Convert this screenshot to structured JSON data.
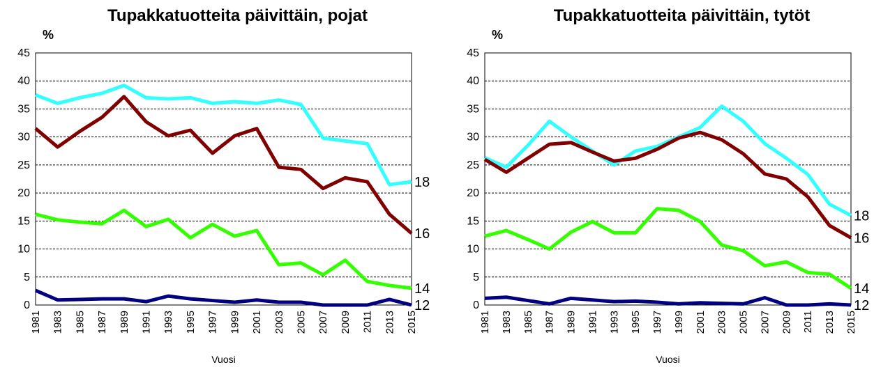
{
  "chart_data": [
    {
      "type": "line",
      "title": "Tupakkatuotteita päivittäin, pojat",
      "y_label": "%",
      "x_label": "Vuosi",
      "categories": [
        "1981",
        "1983",
        "1985",
        "1987",
        "1989",
        "1991",
        "1993",
        "1995",
        "1997",
        "1999",
        "2001",
        "2003",
        "2005",
        "2007",
        "2009",
        "2011",
        "2013",
        "2015"
      ],
      "ylim": [
        0,
        45
      ],
      "yticks": [
        0,
        5,
        10,
        15,
        20,
        25,
        30,
        35,
        40,
        45
      ],
      "grid": true,
      "series": [
        {
          "name": "18",
          "color": "#33ffff",
          "values": [
            37.5,
            36,
            37,
            37.8,
            39.2,
            37,
            36.8,
            37,
            36,
            36.3,
            36,
            36.6,
            35.8,
            29.8,
            29.3,
            28.8,
            21.5,
            22
          ]
        },
        {
          "name": "16",
          "color": "#800000",
          "values": [
            31.5,
            28.2,
            31,
            33.5,
            37.2,
            32.7,
            30.2,
            31.2,
            27.1,
            30.2,
            31.5,
            24.6,
            24.2,
            20.8,
            22.7,
            22,
            16.2,
            12.8
          ]
        },
        {
          "name": "14",
          "color": "#33ff00",
          "values": [
            16.2,
            15.2,
            14.8,
            14.5,
            16.9,
            14,
            15.3,
            12,
            14.4,
            12.3,
            13.3,
            7.2,
            7.5,
            5.4,
            8,
            4.2,
            3.5,
            3
          ]
        },
        {
          "name": "12",
          "color": "#000080",
          "values": [
            2.6,
            0.9,
            1,
            1.1,
            1.1,
            0.6,
            1.6,
            1.1,
            0.8,
            0.5,
            0.9,
            0.5,
            0.5,
            0,
            0,
            0,
            1,
            0
          ]
        }
      ]
    },
    {
      "type": "line",
      "title": "Tupakkatuotteita päivittäin, tytöt",
      "y_label": "%",
      "x_label": "Vuosi",
      "categories": [
        "1981",
        "1983",
        "1985",
        "1987",
        "1989",
        "1991",
        "1993",
        "1995",
        "1997",
        "1999",
        "2001",
        "2003",
        "2005",
        "2007",
        "2009",
        "2011",
        "2013",
        "2015"
      ],
      "ylim": [
        0,
        45
      ],
      "yticks": [
        0,
        5,
        10,
        15,
        20,
        25,
        30,
        35,
        40,
        45
      ],
      "grid": true,
      "series": [
        {
          "name": "18",
          "color": "#33ffff",
          "values": [
            26.3,
            24.6,
            28.5,
            32.8,
            30,
            27.5,
            25,
            27.5,
            28.3,
            30,
            31.7,
            35.5,
            32.8,
            28.8,
            26.2,
            23.3,
            18,
            16
          ]
        },
        {
          "name": "16",
          "color": "#800000",
          "values": [
            26,
            23.7,
            26.2,
            28.7,
            29,
            27.3,
            25.7,
            26.2,
            27.8,
            29.8,
            30.8,
            29.5,
            27,
            23.4,
            22.5,
            19.3,
            14.2,
            12
          ]
        },
        {
          "name": "14",
          "color": "#33ff00",
          "values": [
            12.3,
            13.3,
            11.7,
            10,
            13,
            14.9,
            12.9,
            12.9,
            17.2,
            16.9,
            14.9,
            10.7,
            9.7,
            7,
            7.7,
            5.8,
            5.5,
            3
          ]
        },
        {
          "name": "12",
          "color": "#000080",
          "values": [
            1.2,
            1.4,
            0.8,
            0.2,
            1.2,
            0.9,
            0.6,
            0.7,
            0.5,
            0.2,
            0.4,
            0.3,
            0.2,
            1.3,
            0,
            0,
            0.2,
            0
          ]
        }
      ]
    }
  ]
}
